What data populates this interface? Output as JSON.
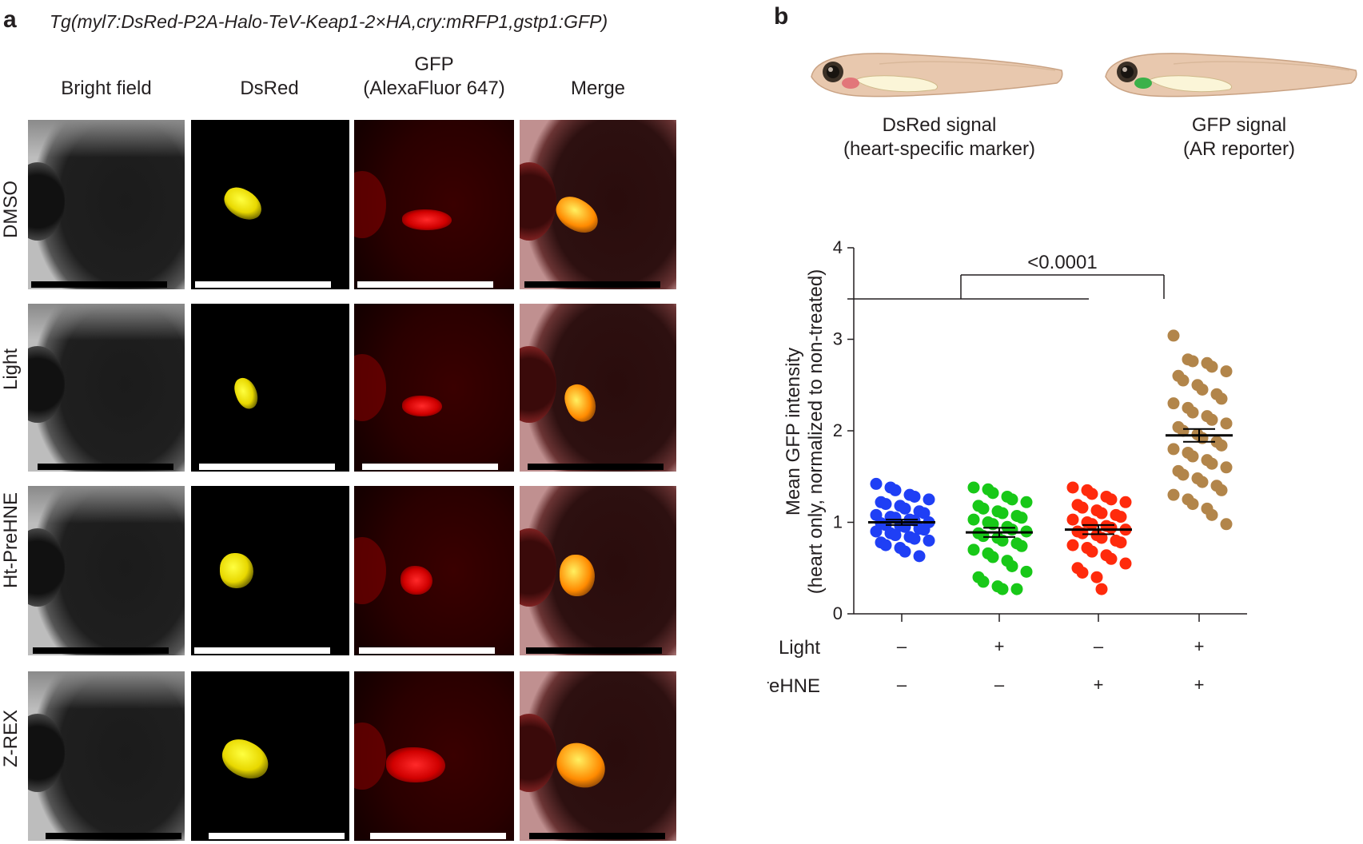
{
  "panel_a": {
    "letter": "a",
    "genotype": "Tg(myl7:DsRed-P2A-Halo-TeV-Keap1-2×HA,cry:mRFP1,gstp1:GFP)",
    "columns": [
      {
        "label_line1": "Bright field",
        "label_line2": ""
      },
      {
        "label_line1": "DsRed",
        "label_line2": ""
      },
      {
        "label_line1": "GFP",
        "label_line2": "(AlexaFluor 647)"
      },
      {
        "label_line1": "Merge",
        "label_line2": ""
      }
    ],
    "rows": [
      "DMSO",
      "Light",
      "Ht-PreHNE",
      "Z-REX"
    ]
  },
  "panel_b": {
    "letter": "b",
    "fish_captions": [
      {
        "line1": "DsRed signal",
        "line2": "(heart-specific marker)"
      },
      {
        "line1": "GFP signal",
        "line2": "(AR reporter)"
      }
    ],
    "colors": {
      "heart_dsred": "#e2767a",
      "heart_gfp": "#3bb14a"
    }
  },
  "chart_data": {
    "type": "scatter",
    "ylabel_line1": "Mean GFP intensity",
    "ylabel_line2": "(heart only, normalized to non-treated)",
    "ylim": [
      0,
      4
    ],
    "yticks": [
      "0",
      "1",
      "2",
      "3",
      "4"
    ],
    "significance_label": "<0.0001",
    "conditions": {
      "row1_label": "Light",
      "row2_label": "Ht-PreHNE",
      "row1_values": [
        "–",
        "+",
        "–",
        "+"
      ],
      "row2_values": [
        "–",
        "–",
        "+",
        "+"
      ]
    },
    "series": [
      {
        "color": "#1f3ff5",
        "mean": 1.0,
        "sem": 0.03,
        "values": [
          1.42,
          1.38,
          1.35,
          1.3,
          1.28,
          1.25,
          1.22,
          1.2,
          1.18,
          1.15,
          1.12,
          1.1,
          1.08,
          1.06,
          1.05,
          1.03,
          1.02,
          1.0,
          0.99,
          0.97,
          0.96,
          0.95,
          0.93,
          0.92,
          0.9,
          0.88,
          0.86,
          0.84,
          0.82,
          0.8,
          0.78,
          0.75,
          0.72,
          0.68,
          0.63
        ]
      },
      {
        "color": "#18c818",
        "mean": 0.89,
        "sem": 0.05,
        "values": [
          1.38,
          1.36,
          1.32,
          1.28,
          1.25,
          1.22,
          1.18,
          1.15,
          1.12,
          1.1,
          1.07,
          1.05,
          1.03,
          1.0,
          0.98,
          0.95,
          0.92,
          0.9,
          0.88,
          0.85,
          0.83,
          0.8,
          0.77,
          0.74,
          0.7,
          0.66,
          0.62,
          0.58,
          0.52,
          0.46,
          0.4,
          0.35,
          0.3,
          0.27,
          0.27
        ]
      },
      {
        "color": "#ff2a0c",
        "mean": 0.92,
        "sem": 0.05,
        "values": [
          1.38,
          1.35,
          1.31,
          1.28,
          1.25,
          1.22,
          1.19,
          1.16,
          1.13,
          1.1,
          1.08,
          1.06,
          1.03,
          1.0,
          0.98,
          0.96,
          0.94,
          0.92,
          0.9,
          0.88,
          0.86,
          0.83,
          0.8,
          0.78,
          0.75,
          0.72,
          0.68,
          0.64,
          0.6,
          0.55,
          0.5,
          0.45,
          0.4,
          0.27
        ]
      },
      {
        "color": "#b2854a",
        "mean": 1.95,
        "sem": 0.07,
        "values": [
          3.04,
          2.78,
          2.76,
          2.74,
          2.7,
          2.65,
          2.6,
          2.55,
          2.5,
          2.45,
          2.4,
          2.35,
          2.3,
          2.25,
          2.2,
          2.16,
          2.12,
          2.08,
          2.04,
          2.0,
          1.96,
          1.92,
          1.88,
          1.84,
          1.8,
          1.76,
          1.72,
          1.68,
          1.64,
          1.6,
          1.56,
          1.52,
          1.48,
          1.44,
          1.4,
          1.35,
          1.3,
          1.25,
          1.2,
          1.15,
          1.08,
          0.98
        ]
      }
    ]
  }
}
